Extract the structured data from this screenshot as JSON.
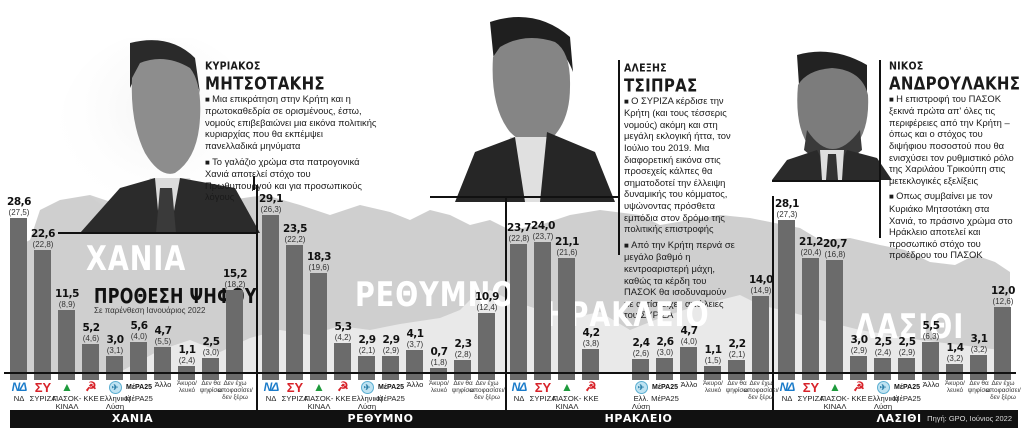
{
  "colors": {
    "bar": "#6b6b6b",
    "map": "#c9c9c9",
    "footer_bg": "#111111",
    "nd": "#1a7bc9",
    "syriza": "#d8232a",
    "pasok": "#1e9a3c",
    "kke": "#d8232a"
  },
  "infographic": {
    "title": "ΠΡΟΘΕΣΗ ΨΗΦΟΥ",
    "subtitle": "Σε παρένθεση Ιανουάριος 2022",
    "source": "Πηγή: GPO, Ιούνιος 2022"
  },
  "politicians": [
    {
      "first_name": "ΚΥΡΙΑΚΟΣ",
      "last_name": "ΜΗΤΣΟΤΑΚΗΣ",
      "paragraphs": [
        "Μια επικράτηση στην Κρήτη και η πρωτοκαθεδρία σε ορισμένους, έστω, νομούς επιβεβαιώνει μια εικόνα πολιτικής κυριαρχίας που θα εκπέμψει πανελλαδικά μηνύματα",
        "Το γαλάζιο χρώμα στα πατρογονικά Χανιά αποτελεί στόχο του Πρωθυπουργού και για προσωπικούς λόγους"
      ]
    },
    {
      "first_name": "ΑΛΕΞΗΣ",
      "last_name": "ΤΣΙΠΡΑΣ",
      "paragraphs": [
        "Ο ΣΥΡΙΖΑ κέρδισε την Κρήτη (και τους τέσσερις νομούς) ακόμη και στη μεγάλη εκλογική ήττα, τον Ιούλιο του 2019. Μια διαφορετική εικόνα στις προσεχείς κάλπες θα σηματοδοτεί την έλλειψη δυναμικής του κόμματος, υψώνοντας πρόσθετα εμπόδια στον δρόμο της πολιτικής επιστροφής",
        "Από την Κρήτη περνά σε μεγάλο βαθμό η κεντροαριστερή μάχη, καθώς τα κέρδη του ΠΑΣΟΚ θα ισοδυναμούν με αντίστοιχες απώλειες του ΣΥΡΙΖΑ"
      ]
    },
    {
      "first_name": "ΝΙΚΟΣ",
      "last_name": "ΑΝΔΡΟΥΛΑΚΗΣ",
      "paragraphs": [
        "Η επιστροφή του ΠΑΣΟΚ ξεκινά πρώτα απ' όλες τις περιφέρειες από την Κρήτη – όπως και ο στόχος του διψήφιου ποσοστού που θα ενισχύσει τον ρυθμιστικό ρόλο της Χαριλάου Τρικούπη στις μετεκλογικές εξελίξεις",
        "Οπως συμβαίνει με τον Κυριάκο Μητσοτάκη στα Χανιά, το πράσινο χρώμα στο Ηράκλειο αποτελεί και προσωπικό στόχο του προέδρου του ΠΑΣΟΚ"
      ]
    }
  ],
  "parties": [
    {
      "key": "nd",
      "logo": "ΝΔ",
      "label": "ΝΔ"
    },
    {
      "key": "syriza",
      "logo": "ΣΥ",
      "label": "ΣΥΡΙΖΑ"
    },
    {
      "key": "pasok",
      "logo": "▲",
      "label": "ΠΑΣΟΚ-ΚΙΝΑΛ"
    },
    {
      "key": "kke",
      "logo": "☭",
      "label": "ΚΚΕ"
    },
    {
      "key": "el",
      "logo": "✈",
      "label": "Ελληνική Λύση",
      "label_short": "Ελλ. Λύση"
    },
    {
      "key": "mera",
      "logo": "ΜέΡΑ25",
      "label": "ΜέΡΑ25"
    },
    {
      "key": "other",
      "logo": "",
      "label": "Άλλο"
    },
    {
      "key": "invalid",
      "logo": "",
      "label": "Άκυρο/ λευκό"
    },
    {
      "key": "novote",
      "logo": "",
      "label": "Δεν θα ψηφίσω"
    },
    {
      "key": "undecided",
      "logo": "",
      "label": "Δεν έχω αποφασίσει/ δεν ξέρω"
    }
  ],
  "chart_data": [
    {
      "type": "bar",
      "title": "ΧΑΝΙΑ",
      "subtitle": "ΠΡΟΘΕΣΗ ΨΗΦΟΥ — Σε παρένθεση Ιανουάριος 2022",
      "categories": [
        "ΝΔ",
        "ΣΥΡΙΖΑ",
        "ΠΑΣΟΚ-ΚΙΝΑΛ",
        "ΚΚΕ",
        "Ελληνική Λύση",
        "ΜέΡΑ25",
        "Άλλο",
        "Άκυρο/λευκό",
        "Δεν θα ψηφίσω",
        "Δεν έχω αποφασίσει/δεν ξέρω"
      ],
      "series": [
        {
          "name": "Ιούνιος 2022",
          "values": [
            28.6,
            22.6,
            11.5,
            5.2,
            3.0,
            5.6,
            4.7,
            1.1,
            2.5,
            15.2
          ]
        },
        {
          "name": "Ιανουάριος 2022",
          "values": [
            27.5,
            22.8,
            8.9,
            4.6,
            3.1,
            4.0,
            5.5,
            2.4,
            3.0,
            18.2
          ]
        }
      ],
      "labels": [
        "28,6",
        "22,6",
        "11,5",
        "5,2",
        "3,0",
        "5,6",
        "4,7",
        "1,1",
        "2,5",
        "15,2"
      ],
      "prev_labels": [
        "(27,5)",
        "(22,8)",
        "(8,9)",
        "(4,6)",
        "(3,1)",
        "(4,0)",
        "(5,5)",
        "(2,4)",
        "(3,0)",
        "(18,2)"
      ],
      "ylabel": "%",
      "ylim": [
        0,
        30
      ]
    },
    {
      "type": "bar",
      "title": "ΡΕΘΥΜΝΟ",
      "categories": [
        "ΝΔ",
        "ΣΥΡΙΖΑ",
        "ΠΑΣΟΚ-ΚΙΝΑΛ",
        "ΚΚΕ",
        "Ελληνική Λύση",
        "ΜέΡΑ25",
        "Άλλο",
        "Άκυρο/λευκό",
        "Δεν θα ψηφίσω",
        "Δεν έχω αποφασίσει/δεν ξέρω"
      ],
      "series": [
        {
          "name": "Ιούνιος 2022",
          "values": [
            29.1,
            23.5,
            18.3,
            5.3,
            2.9,
            2.9,
            4.1,
            0.7,
            2.3,
            10.9
          ]
        },
        {
          "name": "Ιανουάριος 2022",
          "values": [
            26.3,
            22.2,
            19.6,
            4.2,
            2.1,
            2.9,
            3.7,
            1.8,
            2.8,
            12.4
          ]
        }
      ],
      "labels": [
        "29,1",
        "23,5",
        "18,3",
        "5,3",
        "2,9",
        "2,9",
        "4,1",
        "0,7",
        "2,3",
        "10,9"
      ],
      "prev_labels": [
        "(26,3)",
        "(22,2)",
        "(19,6)",
        "(4,2)",
        "(2,1)",
        "(2,9)",
        "(3,7)",
        "(1,8)",
        "(2,8)",
        "(12,4)"
      ],
      "ylabel": "%",
      "ylim": [
        0,
        30
      ]
    },
    {
      "type": "bar",
      "title": "ΗΡΑΚΛΕΙΟ",
      "categories": [
        "ΝΔ",
        "ΣΥΡΙΖΑ",
        "ΠΑΣΟΚ-ΚΙΝΑΛ",
        "ΚΚΕ",
        "Ελλ. Λύση",
        "ΜέΡΑ25",
        "Άλλο",
        "Άκυρο/λευκό",
        "Δεν θα ψηφίσω",
        "Δεν έχω αποφασίσει/δεν ξέρω"
      ],
      "series": [
        {
          "name": "Ιούνιος 2022",
          "values": [
            23.7,
            24.0,
            21.1,
            4.2,
            2.4,
            2.6,
            4.7,
            1.1,
            2.2,
            14.0
          ]
        },
        {
          "name": "Ιανουάριος 2022",
          "values": [
            22.8,
            23.7,
            21.6,
            3.8,
            2.6,
            3.0,
            4.0,
            1.5,
            2.1,
            14.9
          ]
        }
      ],
      "labels": [
        "23,7",
        "24,0",
        "21,1",
        "4,2",
        "2,4",
        "2,6",
        "4,7",
        "1,1",
        "2,2",
        "14,0"
      ],
      "prev_labels": [
        "(22,8)",
        "(23,7)",
        "(21,6)",
        "(3,8)",
        "(2,6)",
        "(3,0)",
        "(4,0)",
        "(1,5)",
        "(2,1)",
        "(14,9)"
      ],
      "ylabel": "%",
      "ylim": [
        0,
        30
      ]
    },
    {
      "type": "bar",
      "title": "ΛΑΣΙΘΙ",
      "categories": [
        "ΝΔ",
        "ΣΥΡΙΖΑ",
        "ΠΑΣΟΚ-ΚΙΝΑΛ",
        "ΚΚΕ",
        "Ελληνική Λύση",
        "ΜέΡΑ25",
        "Άλλο",
        "Άκυρο/λευκό",
        "Δεν θα ψηφίσω",
        "Δεν έχω αποφασίσει/δεν ξέρω"
      ],
      "series": [
        {
          "name": "Ιούνιος 2022",
          "values": [
            28.1,
            21.2,
            20.7,
            3.0,
            2.5,
            2.5,
            5.5,
            1.4,
            3.1,
            12.0
          ]
        },
        {
          "name": "Ιανουάριος 2022",
          "values": [
            27.3,
            20.4,
            16.8,
            2.9,
            2.4,
            2.9,
            6.3,
            3.2,
            3.2,
            12.6
          ]
        }
      ],
      "labels": [
        "28,1",
        "21,2",
        "20,7",
        "3,0",
        "2,5",
        "2,5",
        "5,5",
        "1,4",
        "3,1",
        "12,0"
      ],
      "prev_labels": [
        "(27,3)",
        "(20,4)",
        "(16,8)",
        "(2,9)",
        "(2,4)",
        "(2,9)",
        "(6,3)",
        "(3,2)",
        "(3,2)",
        "(12,6)"
      ],
      "ylabel": "%",
      "ylim": [
        0,
        30
      ]
    }
  ]
}
